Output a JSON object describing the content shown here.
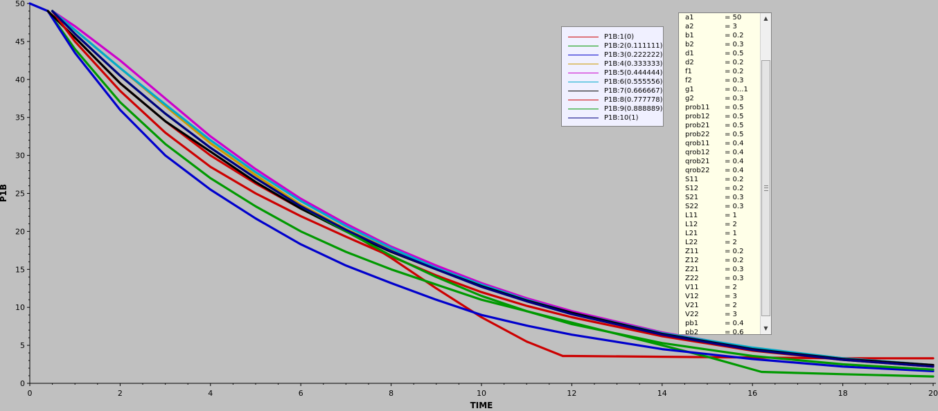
{
  "chart_data": {
    "type": "line",
    "xlabel": "TIME",
    "ylabel": "P1B",
    "xlim": [
      0,
      20
    ],
    "ylim": [
      0,
      50
    ],
    "xticks": [
      "0",
      "2",
      "4",
      "6",
      "8",
      "10",
      "12",
      "14",
      "16",
      "18",
      "20"
    ],
    "yticks": [
      "0",
      "5",
      "10",
      "15",
      "20",
      "25",
      "30",
      "35",
      "40",
      "45",
      "50"
    ],
    "grid": false,
    "legend_position": "top-right",
    "series": [
      {
        "name": "P1B:1(0)",
        "color": "#cc0000",
        "x": [
          0.4,
          1,
          2,
          3,
          4,
          5,
          6,
          7,
          8,
          9,
          10,
          11,
          11.8,
          12,
          14,
          16,
          18,
          20
        ],
        "y": [
          49,
          45.5,
          39.5,
          34.5,
          30,
          26.3,
          23,
          20.2,
          16.5,
          12.5,
          8.7,
          5.5,
          3.6,
          3.6,
          3.5,
          3.4,
          3.3,
          3.3
        ]
      },
      {
        "name": "P1B:2(0.111111)",
        "color": "#009900",
        "x": [
          0.4,
          1,
          2,
          3,
          4,
          5,
          6,
          7,
          8,
          9,
          10,
          11,
          12,
          14,
          15,
          16.2,
          18,
          20
        ],
        "y": [
          49,
          44,
          37,
          31.5,
          27,
          23.3,
          20,
          17.3,
          15,
          13,
          11,
          9.5,
          8,
          5,
          3.5,
          1.5,
          1.2,
          0.9
        ]
      },
      {
        "name": "P1B:3(0.222222)",
        "color": "#0000cc",
        "x": [
          0,
          0.4,
          1,
          2,
          3,
          4,
          5,
          6,
          7,
          8,
          9,
          10,
          11,
          12,
          14,
          16,
          18,
          20
        ],
        "y": [
          50,
          49,
          43.5,
          36,
          30,
          25.5,
          21.7,
          18.3,
          15.5,
          13.2,
          11,
          9,
          7.6,
          6.4,
          4.5,
          3.2,
          2.2,
          1.6
        ]
      },
      {
        "name": "P1B:4(0.333333)",
        "color": "#cc9900",
        "x": [
          0.5,
          1,
          2,
          3,
          4,
          5,
          6,
          7,
          8,
          9,
          10,
          11,
          12,
          14,
          16,
          18,
          20
        ],
        "y": [
          49,
          46.5,
          41.5,
          36.5,
          31.6,
          27.4,
          23.5,
          20.3,
          17.5,
          15,
          12.8,
          10.8,
          9.2,
          6.5,
          4.5,
          3.2,
          2.3
        ]
      },
      {
        "name": "P1B:5(0.444444)",
        "color": "#cc00cc",
        "x": [
          0.5,
          1,
          2,
          3,
          4,
          5,
          6,
          7,
          8,
          9,
          10,
          11,
          12,
          14,
          16,
          18,
          20
        ],
        "y": [
          49,
          47,
          42.5,
          37.5,
          32.5,
          28.2,
          24.3,
          21,
          18,
          15.5,
          13.2,
          11.2,
          9.5,
          6.7,
          4.6,
          3.3,
          2.4
        ]
      },
      {
        "name": "P1B:6(0.555556)",
        "color": "#00aacc",
        "x": [
          0.5,
          1,
          2,
          3,
          4,
          5,
          6,
          7,
          8,
          9,
          10,
          11,
          12,
          14,
          16,
          18,
          20
        ],
        "y": [
          49,
          46.5,
          41.5,
          36.7,
          32,
          27.8,
          24,
          20.7,
          17.8,
          15.2,
          13,
          11,
          9.3,
          6.6,
          4.7,
          3.3,
          2.4
        ]
      },
      {
        "name": "P1B:7(0.666667)",
        "color": "#000000",
        "x": [
          0.4,
          1,
          2,
          3,
          4,
          5,
          6,
          7,
          8,
          9,
          10,
          11,
          12,
          14,
          16,
          18,
          20
        ],
        "y": [
          49,
          45.5,
          39.5,
          34.5,
          30.5,
          26.5,
          23,
          20,
          17.3,
          15,
          12.8,
          10.9,
          9.3,
          6.5,
          4.5,
          3.2,
          2.4
        ]
      },
      {
        "name": "P1B:8(0.777778)",
        "color": "#cc0000",
        "x": [
          0.5,
          1,
          2,
          3,
          4,
          5,
          6,
          7,
          8,
          9,
          10,
          11,
          12,
          14,
          16,
          18,
          20
        ],
        "y": [
          49,
          45,
          38.5,
          33,
          28.5,
          25,
          22,
          19.3,
          16.7,
          14.2,
          12,
          10.2,
          8.7,
          6.2,
          4.3,
          3.1,
          2.2
        ]
      },
      {
        "name": "P1B:9(0.888889)",
        "color": "#009900",
        "x": [
          0.5,
          1,
          2,
          3,
          4,
          5,
          6,
          7,
          8,
          9,
          10,
          11,
          12,
          14,
          16,
          18,
          20
        ],
        "y": [
          49,
          46,
          40.5,
          35.5,
          31,
          27,
          23.3,
          20,
          16.8,
          14,
          11.5,
          9.5,
          7.8,
          5.3,
          3.6,
          2.5,
          1.8
        ]
      },
      {
        "name": "P1B:10(1)",
        "color": "#000080",
        "x": [
          0.5,
          1,
          2,
          3,
          4,
          5,
          6,
          7,
          8,
          9,
          10,
          11,
          12,
          14,
          16,
          18,
          20
        ],
        "y": [
          49,
          46,
          40.5,
          35.5,
          31,
          27,
          23.3,
          20.2,
          17.4,
          15,
          12.7,
          10.8,
          9.1,
          6.4,
          4.4,
          3.1,
          2.2
        ]
      }
    ]
  },
  "params": [
    {
      "name": "a1",
      "value": "= 50"
    },
    {
      "name": "a2",
      "value": "= 3"
    },
    {
      "name": "b1",
      "value": "= 0.2"
    },
    {
      "name": "b2",
      "value": "= 0.3"
    },
    {
      "name": "d1",
      "value": "= 0.5"
    },
    {
      "name": "d2",
      "value": "= 0.2"
    },
    {
      "name": "f1",
      "value": "= 0.2"
    },
    {
      "name": "f2",
      "value": "= 0.3"
    },
    {
      "name": "g1",
      "value": "= 0...1"
    },
    {
      "name": "g2",
      "value": "= 0.3"
    },
    {
      "name": "prob11",
      "value": "= 0.5"
    },
    {
      "name": "prob12",
      "value": "= 0.5"
    },
    {
      "name": "prob21",
      "value": "= 0.5"
    },
    {
      "name": "prob22",
      "value": "= 0.5"
    },
    {
      "name": "qrob11",
      "value": "= 0.4"
    },
    {
      "name": "qrob12",
      "value": "= 0.4"
    },
    {
      "name": "qrob21",
      "value": "= 0.4"
    },
    {
      "name": "qrob22",
      "value": "= 0.4"
    },
    {
      "name": "S11",
      "value": "= 0.2"
    },
    {
      "name": "S12",
      "value": "= 0.2"
    },
    {
      "name": "S21",
      "value": "= 0.3"
    },
    {
      "name": "S22",
      "value": "= 0.3"
    },
    {
      "name": "L11",
      "value": "= 1"
    },
    {
      "name": "L12",
      "value": "= 2"
    },
    {
      "name": "L21",
      "value": "= 1"
    },
    {
      "name": "L22",
      "value": "= 2"
    },
    {
      "name": "Z11",
      "value": "= 0.2"
    },
    {
      "name": "Z12",
      "value": "= 0.2"
    },
    {
      "name": "Z21",
      "value": "= 0.3"
    },
    {
      "name": "Z22",
      "value": "= 0.3"
    },
    {
      "name": "V11",
      "value": "= 2"
    },
    {
      "name": "V12",
      "value": "= 3"
    },
    {
      "name": "V21",
      "value": "= 2"
    },
    {
      "name": "V22",
      "value": "= 3"
    },
    {
      "name": "pb1",
      "value": "= 0.4"
    },
    {
      "name": "pb2",
      "value": "= 0.6"
    }
  ],
  "scroll_icons": {
    "up": "scroll-up-arrow-icon",
    "down": "scroll-down-arrow-icon"
  }
}
